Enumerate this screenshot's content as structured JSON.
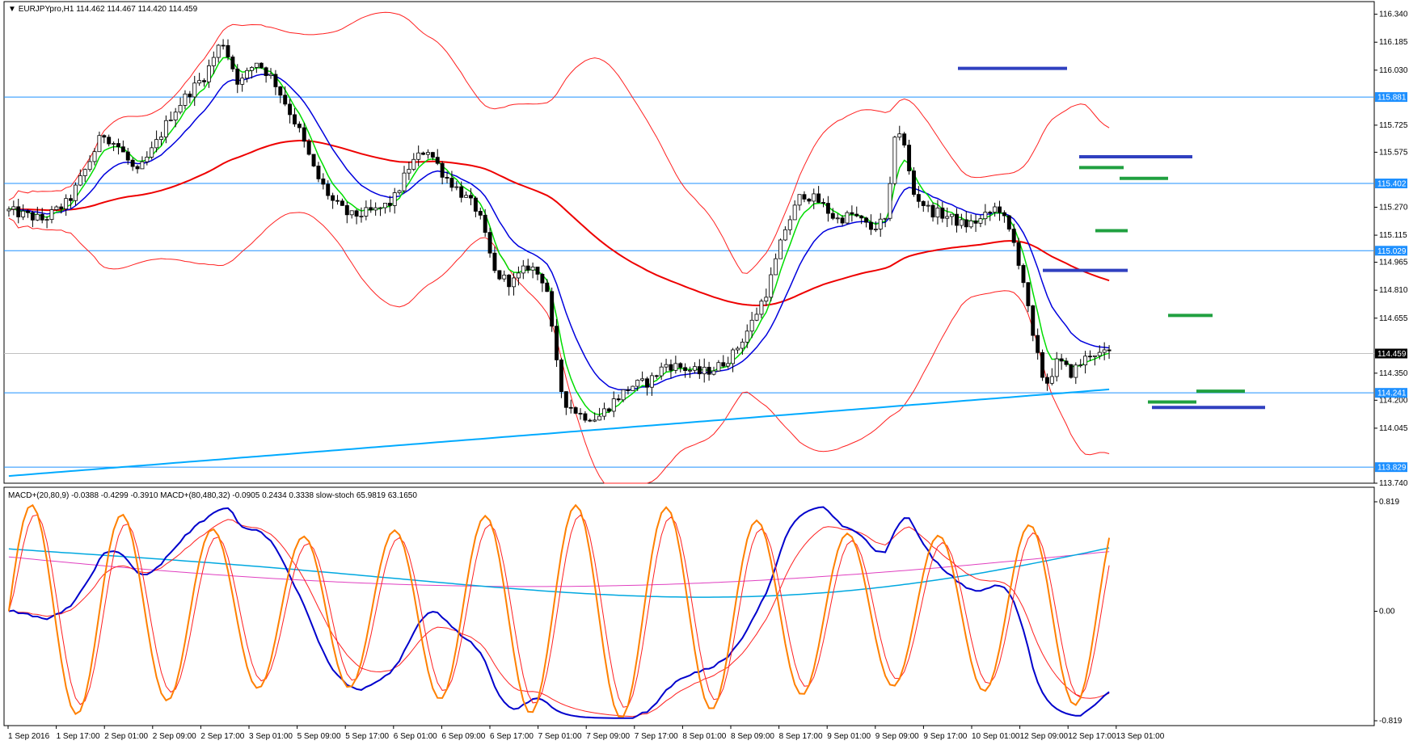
{
  "main": {
    "symbol": "EURJPYpro,H1",
    "ohlc": "114.462 114.467 114.420 114.459",
    "arrow": "▼"
  },
  "sub": {
    "header": "MACD+(20,80,9) -0.0388 -0.4299 -0.3910  MACD+(80,480,32) -0.0905 0.2434 0.3338  slow-stoch 65.9819 63.1650"
  },
  "price_axis": {
    "ticks": [
      "116.340",
      "116.185",
      "116.030",
      "115.725",
      "115.575",
      "115.270",
      "115.115",
      "114.965",
      "114.810",
      "114.655",
      "114.350",
      "114.200",
      "114.045",
      "113.740"
    ],
    "level_labels": [
      {
        "price": 115.881,
        "label": "115.881",
        "color": "#1e90ff"
      },
      {
        "price": 115.402,
        "label": "115.402",
        "color": "#1e90ff"
      },
      {
        "price": 115.029,
        "label": "115.029",
        "color": "#1e90ff"
      },
      {
        "price": 114.241,
        "label": "114.241",
        "color": "#1e90ff"
      },
      {
        "price": 113.829,
        "label": "113.829",
        "color": "#1e90ff"
      }
    ],
    "current": {
      "price": 114.459,
      "label": "114.459",
      "color": "#000000"
    },
    "range": [
      113.74,
      116.41
    ]
  },
  "sub_axis": {
    "top": "0.819",
    "zero": "0.00",
    "bottom": "-0.819"
  },
  "time_axis": {
    "labels": [
      "1 Sep 2016",
      "1 Sep 17:00",
      "2 Sep 01:00",
      "2 Sep 09:00",
      "2 Sep 17:00",
      "3 Sep 01:00",
      "5 Sep 09:00",
      "5 Sep 17:00",
      "6 Sep 01:00",
      "6 Sep 09:00",
      "6 Sep 17:00",
      "7 Sep 01:00",
      "7 Sep 09:00",
      "7 Sep 17:00",
      "8 Sep 01:00",
      "8 Sep 09:00",
      "8 Sep 17:00",
      "9 Sep 01:00",
      "9 Sep 09:00",
      "9 Sep 17:00",
      "10 Sep 01:00",
      "12 Sep 09:00",
      "12 Sep 17:00",
      "13 Sep 01:00"
    ]
  },
  "colors": {
    "bull": "#ffffff",
    "bear": "#000000",
    "ema_fast": "#00dd00",
    "ema_mid": "#0000dd",
    "ema_slow": "#ee0000",
    "ema_long": "#00aaff",
    "bands": "#ff2020",
    "levels": "#1e90ff",
    "blue_marks": "#3040c0",
    "green_marks": "#20a040",
    "macd_blue": "#0000cc",
    "macd_red": "#ff2020",
    "macd_cyan": "#00a8e0",
    "macd_pink": "#e040c0",
    "stoch_orange": "#ff8000"
  },
  "chart_data": {
    "type": "candlestick",
    "candle_count": 232,
    "close_path": [
      [
        0,
        115.25
      ],
      [
        8,
        115.2
      ],
      [
        14,
        115.3
      ],
      [
        18,
        115.48
      ],
      [
        22,
        115.68
      ],
      [
        26,
        115.6
      ],
      [
        30,
        115.45
      ],
      [
        34,
        115.6
      ],
      [
        38,
        115.78
      ],
      [
        42,
        115.9
      ],
      [
        46,
        116.0
      ],
      [
        50,
        116.2
      ],
      [
        54,
        115.95
      ],
      [
        58,
        116.08
      ],
      [
        62,
        115.98
      ],
      [
        68,
        115.7
      ],
      [
        72,
        115.45
      ],
      [
        76,
        115.3
      ],
      [
        80,
        115.22
      ],
      [
        86,
        115.25
      ],
      [
        90,
        115.3
      ],
      [
        94,
        115.5
      ],
      [
        98,
        115.6
      ],
      [
        102,
        115.45
      ],
      [
        106,
        115.35
      ],
      [
        110,
        115.25
      ],
      [
        114,
        114.9
      ],
      [
        118,
        114.85
      ],
      [
        122,
        114.95
      ],
      [
        126,
        114.85
      ],
      [
        128,
        114.45
      ],
      [
        130,
        114.2
      ],
      [
        134,
        114.12
      ],
      [
        138,
        114.1
      ],
      [
        142,
        114.2
      ],
      [
        146,
        114.28
      ],
      [
        150,
        114.3
      ],
      [
        154,
        114.4
      ],
      [
        158,
        114.38
      ],
      [
        162,
        114.35
      ],
      [
        166,
        114.38
      ],
      [
        170,
        114.46
      ],
      [
        174,
        114.62
      ],
      [
        178,
        114.82
      ],
      [
        182,
        115.15
      ],
      [
        186,
        115.35
      ],
      [
        190,
        115.3
      ],
      [
        194,
        115.2
      ],
      [
        198,
        115.23
      ],
      [
        202,
        115.15
      ],
      [
        206,
        115.2
      ],
      [
        208,
        115.75
      ],
      [
        210,
        115.6
      ],
      [
        212,
        115.35
      ],
      [
        216,
        115.25
      ],
      [
        220,
        115.22
      ],
      [
        224,
        115.17
      ],
      [
        228,
        115.2
      ],
      [
        232,
        115.28
      ],
      [
        236,
        115.05
      ],
      [
        238,
        114.85
      ],
      [
        240,
        114.55
      ],
      [
        243,
        114.28
      ],
      [
        246,
        114.42
      ],
      [
        249,
        114.35
      ],
      [
        252,
        114.42
      ],
      [
        254,
        114.47
      ],
      [
        256,
        114.45
      ],
      [
        258,
        114.46
      ]
    ],
    "level_prices": [
      115.881,
      115.402,
      115.029,
      114.241,
      113.829
    ],
    "current_price": 114.459,
    "ylim": [
      113.74,
      116.41
    ]
  }
}
